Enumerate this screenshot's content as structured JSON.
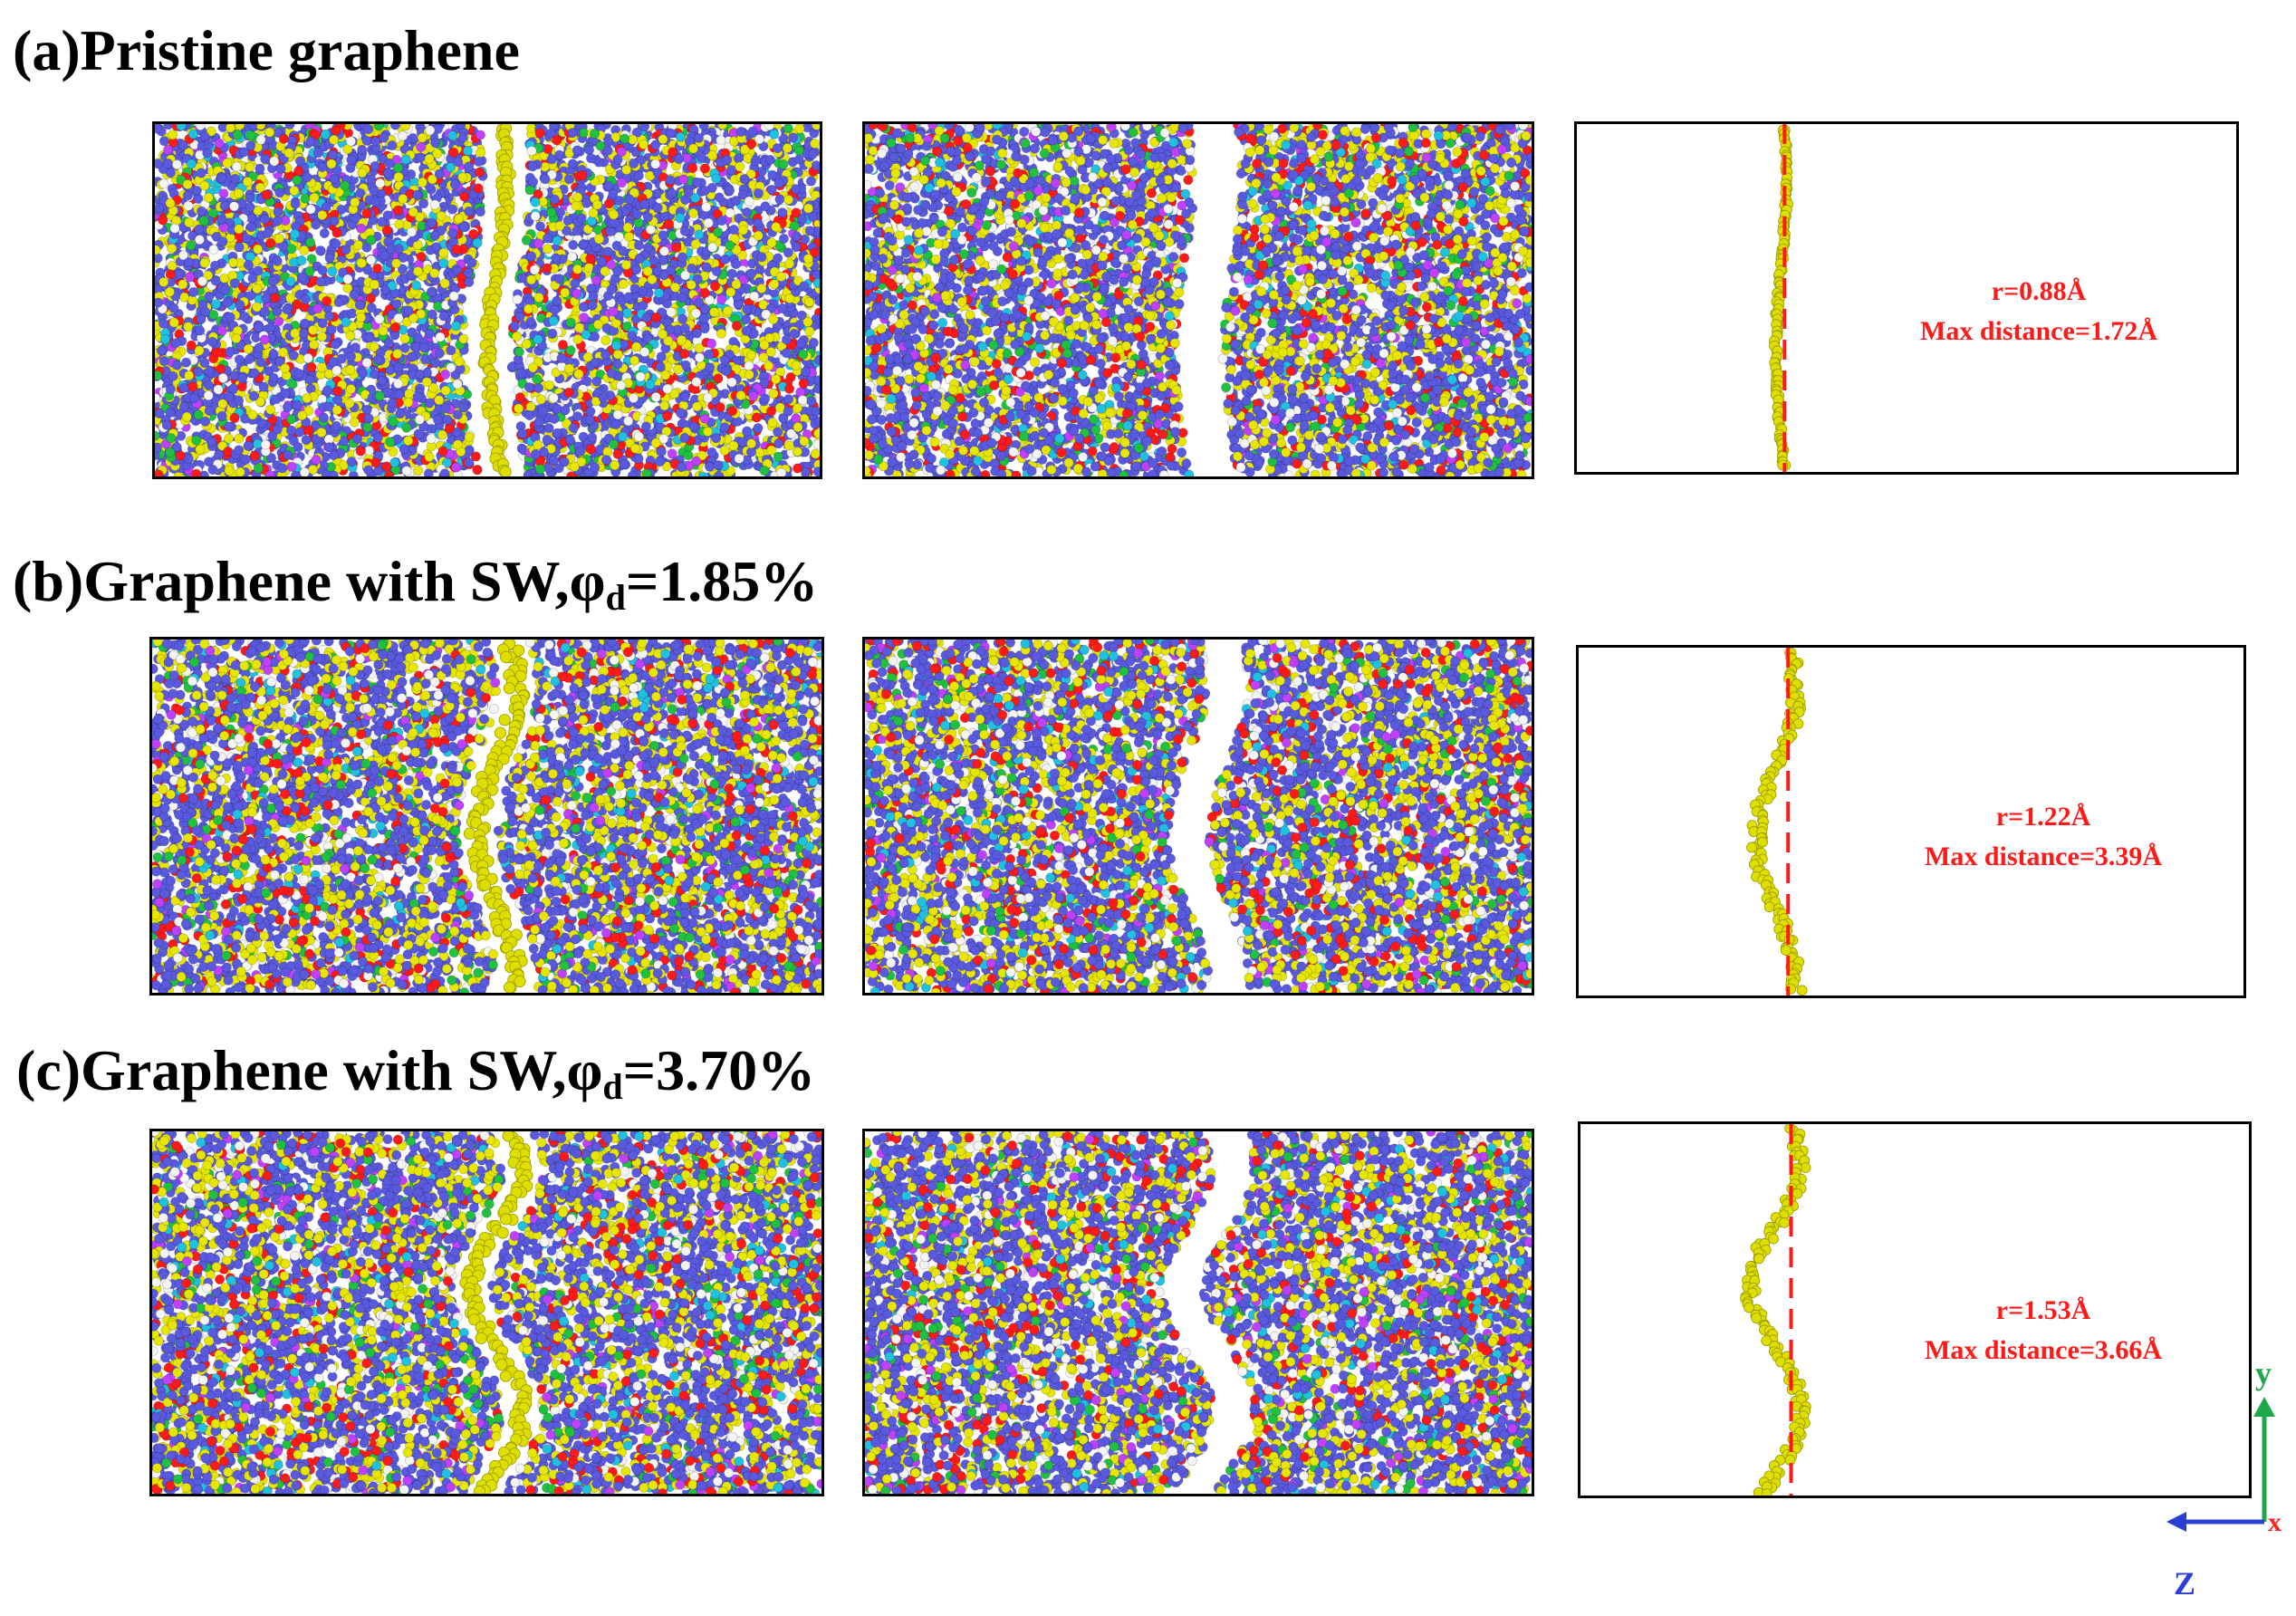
{
  "rows": [
    {
      "title": "(a)Pristine graphene",
      "title_main": "(a)Pristine graphene",
      "title_sub": "",
      "title_tail": "",
      "profile_label_r": "r=0.88Å",
      "profile_label_max": "Max distance=1.72Å"
    },
    {
      "title_main": "(b)Graphene with SW,φ",
      "title_sub": "d",
      "title_tail": "=1.85%",
      "profile_label_r": "r=1.22Å",
      "profile_label_max": "Max distance=3.39Å"
    },
    {
      "title_main": "(c)Graphene with SW,φ",
      "title_sub": "d",
      "title_tail": "=3.70%",
      "profile_label_r": "r=1.53Å",
      "profile_label_max": "Max distance=3.66Å"
    }
  ],
  "axes": {
    "y": "y",
    "z": "Z",
    "x": "x"
  },
  "colors": {
    "atom_blue": "#5a5ae0",
    "atom_yellow": "#e6e600",
    "atom_red": "#ff1a1a",
    "atom_green": "#20c040",
    "atom_cyan": "#20c0e0",
    "atom_white": "#f4f4f4",
    "atom_magenta": "#c040ff",
    "graphene": "#dede00",
    "reference_line": "#ff1a1a",
    "axis_y": "#1ea84a",
    "axis_z": "#2b3ed6",
    "axis_x": "#ff2020"
  }
}
